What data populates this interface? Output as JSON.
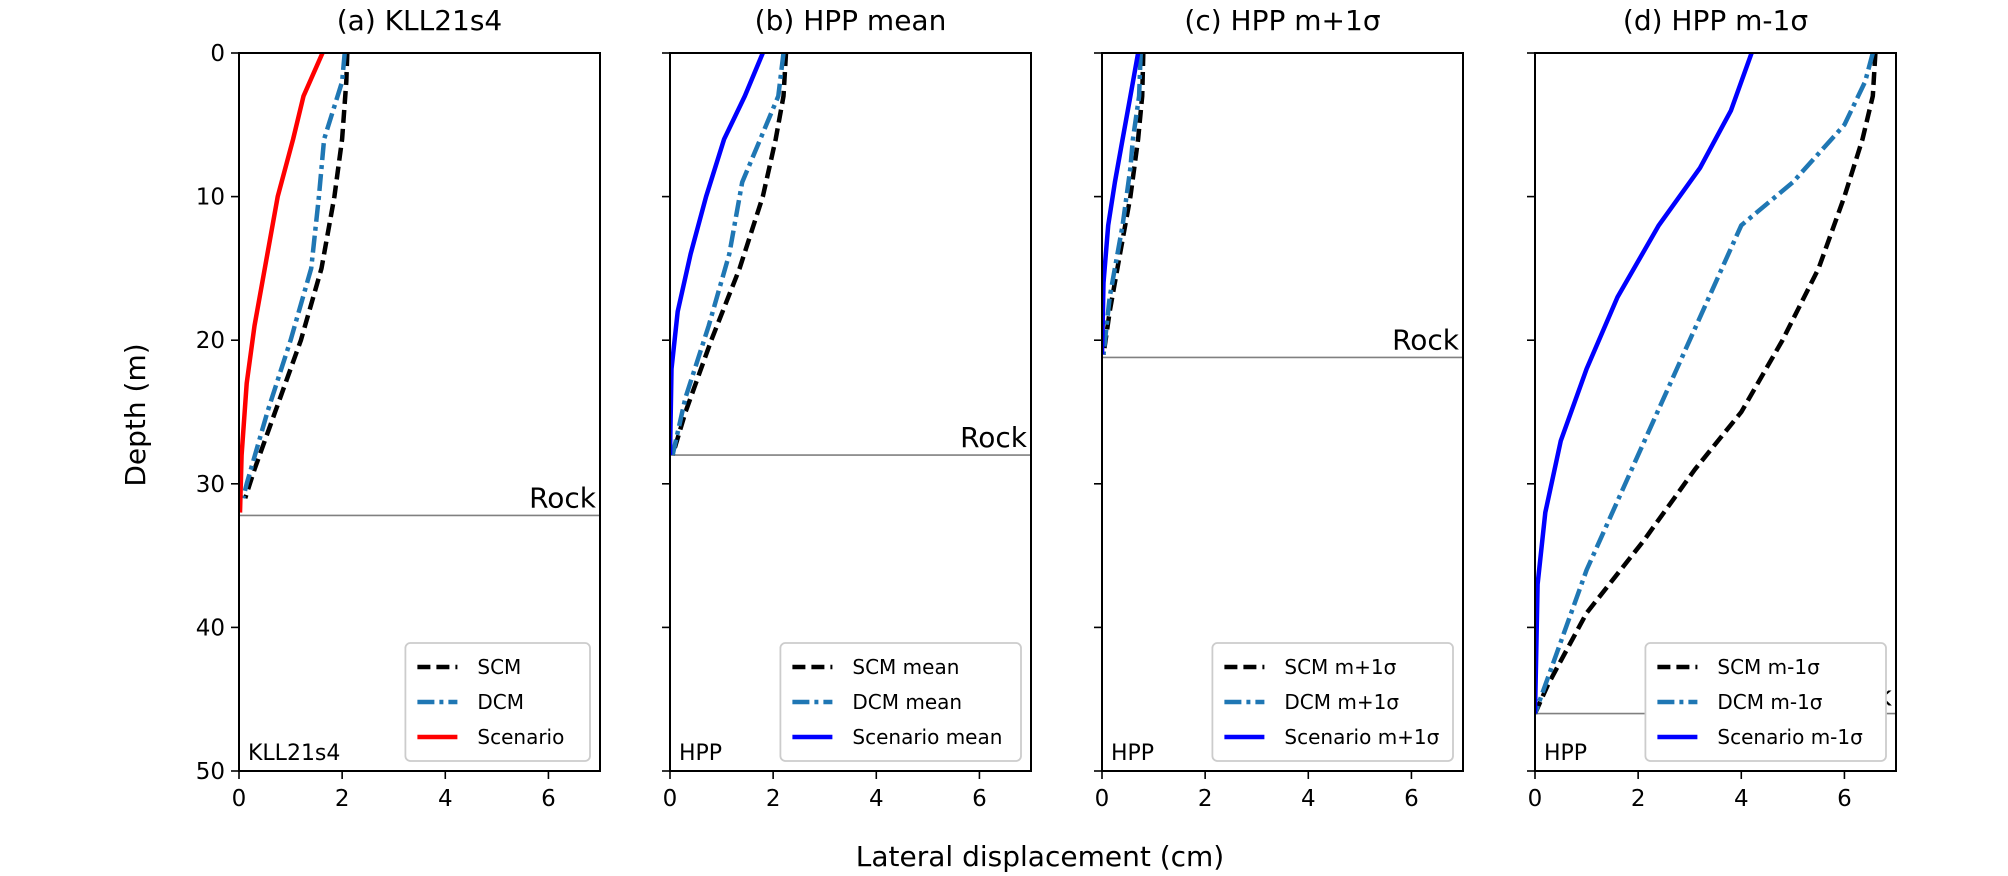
{
  "figure": {
    "xlabel": "Lateral displacement (cm)",
    "ylabel": "Depth (m)"
  },
  "colors": {
    "scm": "#000000",
    "dcm": "#1f77b4",
    "scenario_a": "#ff0000",
    "scenario": "#0000ff",
    "rock_line": "#808080"
  },
  "chart_data": [
    {
      "type": "line",
      "title": "(a) KLL21s4",
      "panel_note": "KLL21s4",
      "xlim": [
        0,
        7
      ],
      "ylim": [
        50,
        0
      ],
      "x_ticks": [
        "0",
        "2",
        "4",
        "6"
      ],
      "y_ticks": [
        "0",
        "10",
        "20",
        "30",
        "40",
        "50"
      ],
      "rock": {
        "label": "Rock",
        "depth": 32.2
      },
      "legend": {
        "position": "lower right"
      },
      "series": [
        {
          "name": "SCM",
          "key": "scm",
          "style": "dashed",
          "x": [
            2.1,
            2.08,
            2.0,
            1.85,
            1.6,
            1.2,
            0.7,
            0.3,
            0.12
          ],
          "y": [
            0,
            2,
            6,
            10,
            15,
            20,
            25,
            29,
            31
          ]
        },
        {
          "name": "DCM",
          "key": "dcm",
          "style": "dashdot",
          "x": [
            2.05,
            2.0,
            1.65,
            1.55,
            1.4,
            1.0,
            0.55,
            0.15,
            0.08
          ],
          "y": [
            0,
            2,
            6,
            10,
            15,
            20,
            25,
            30,
            31
          ]
        },
        {
          "name": "Scenario",
          "key": "scenario_a",
          "style": "solid",
          "x": [
            1.62,
            1.25,
            1.05,
            0.75,
            0.5,
            0.3,
            0.15,
            0.05,
            0.02
          ],
          "y": [
            0,
            3,
            6,
            10,
            15,
            19,
            23,
            28,
            32
          ]
        }
      ]
    },
    {
      "type": "line",
      "title": "(b) HPP mean",
      "panel_note": "HPP",
      "xlim": [
        0,
        7
      ],
      "ylim": [
        50,
        0
      ],
      "x_ticks": [
        "0",
        "2",
        "4",
        "6"
      ],
      "y_ticks": [
        "0",
        "10",
        "20",
        "30",
        "40",
        "50"
      ],
      "rock": {
        "label": "Rock",
        "depth": 28.0
      },
      "legend": {
        "position": "lower right"
      },
      "series": [
        {
          "name": "SCM mean",
          "key": "scm",
          "style": "dashed",
          "x": [
            2.25,
            2.2,
            2.05,
            1.8,
            1.35,
            0.8,
            0.3,
            0.05
          ],
          "y": [
            0,
            3,
            6,
            10,
            15,
            20,
            25,
            28
          ]
        },
        {
          "name": "DCM mean",
          "key": "dcm",
          "style": "dashdot",
          "x": [
            2.2,
            2.1,
            1.75,
            1.4,
            1.15,
            0.75,
            0.3,
            0.05
          ],
          "y": [
            0,
            3,
            6,
            9,
            14,
            19,
            24,
            28
          ]
        },
        {
          "name": "Scenario mean",
          "key": "scenario",
          "style": "solid",
          "x": [
            1.8,
            1.45,
            1.05,
            0.7,
            0.4,
            0.15,
            0.03,
            0.0
          ],
          "y": [
            0,
            3,
            6,
            10,
            14,
            18,
            22,
            28
          ]
        }
      ]
    },
    {
      "type": "line",
      "title": "(c) HPP m+1σ",
      "panel_note": "HPP",
      "xlim": [
        0,
        7
      ],
      "ylim": [
        50,
        0
      ],
      "x_ticks": [
        "0",
        "2",
        "4",
        "6"
      ],
      "y_ticks": [
        "0",
        "10",
        "20",
        "30",
        "40",
        "50"
      ],
      "rock": {
        "label": "Rock",
        "depth": 21.2
      },
      "legend": {
        "position": "lower right"
      },
      "series": [
        {
          "name": "SCM m+1σ",
          "key": "scm",
          "style": "dashed",
          "x": [
            0.8,
            0.78,
            0.7,
            0.55,
            0.35,
            0.15,
            0.03
          ],
          "y": [
            0,
            3,
            6,
            10,
            14,
            18,
            21
          ]
        },
        {
          "name": "DCM m+1σ",
          "key": "dcm",
          "style": "dashdot",
          "x": [
            0.75,
            0.72,
            0.6,
            0.55,
            0.4,
            0.15,
            0.03
          ],
          "y": [
            0,
            3,
            6,
            8,
            12,
            17,
            21
          ]
        },
        {
          "name": "Scenario m+1σ",
          "key": "scenario",
          "style": "solid",
          "x": [
            0.7,
            0.55,
            0.4,
            0.25,
            0.12,
            0.03,
            0.0
          ],
          "y": [
            0,
            3,
            6,
            9,
            12,
            16,
            21
          ]
        }
      ]
    },
    {
      "type": "line",
      "title": "(d) HPP m-1σ",
      "panel_note": "HPP",
      "xlim": [
        0,
        7
      ],
      "ylim": [
        50,
        0
      ],
      "x_ticks": [
        "0",
        "2",
        "4",
        "6"
      ],
      "y_ticks": [
        "0",
        "10",
        "20",
        "30",
        "40",
        "50"
      ],
      "rock": {
        "label": "Rock",
        "depth": 46.0
      },
      "legend": {
        "position": "lower right"
      },
      "series": [
        {
          "name": "SCM m-1σ",
          "key": "scm",
          "style": "dashed",
          "x": [
            6.6,
            6.55,
            6.35,
            6.0,
            5.5,
            4.8,
            4.0,
            3.1,
            2.1,
            1.0,
            0.25,
            0.0
          ],
          "y": [
            0,
            3,
            6,
            10,
            15,
            20,
            25,
            29,
            34,
            39,
            44,
            46
          ]
        },
        {
          "name": "DCM m-1σ",
          "key": "dcm",
          "style": "dashdot",
          "x": [
            6.55,
            6.4,
            6.0,
            5.0,
            4.0,
            3.0,
            2.0,
            1.0,
            0.3,
            0.0
          ],
          "y": [
            0,
            2,
            5,
            9,
            12,
            20,
            28,
            36,
            43,
            46
          ]
        },
        {
          "name": "Scenario m-1σ",
          "key": "scenario",
          "style": "solid",
          "x": [
            4.2,
            3.8,
            3.2,
            2.4,
            1.6,
            1.0,
            0.5,
            0.2,
            0.05,
            0.0
          ],
          "y": [
            0,
            4,
            8,
            12,
            17,
            22,
            27,
            32,
            37,
            46
          ]
        }
      ]
    }
  ]
}
